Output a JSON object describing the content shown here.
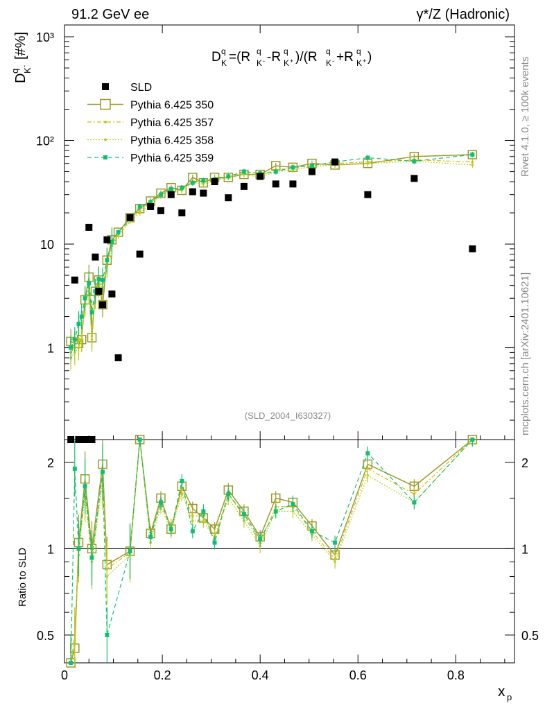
{
  "header": {
    "left": "91.2 GeV ee",
    "right": "γ*/Z (Hadronic)"
  },
  "side_labels": {
    "rivet": "Rivet 4.1.0, ≥ 100k events",
    "mcplots": "mcplots.cern.ch [arXiv:2401.10621]"
  },
  "watermark": "(SLD_2004_I630327)",
  "formula": "D_K^q=(R_K-^q-R_K+^q)/(R_K-^q+R_K+^q)",
  "colors": {
    "sld": "#000000",
    "p350": "#9a9a2a",
    "p357": "#d8b810",
    "p358": "#b8d020",
    "p359": "#10c070"
  },
  "chart_data": {
    "type": "scatter",
    "title": "D_K^q = (R_K-^q - R_K+^q)/(R_K-^q + R_K+^q)",
    "xlabel": "x_p",
    "ylabel_main": "D_K-^q [#%]",
    "ylabel_ratio": "Ratio to SLD",
    "xlim": [
      0,
      0.92
    ],
    "ylim_main": [
      0.13,
      1300
    ],
    "ylim_ratio": [
      0.4,
      2.4
    ],
    "x_ticks": [
      "0",
      "0.2",
      "0.4",
      "0.6",
      "0.8"
    ],
    "y_ticks_main": [
      "1",
      "10",
      "10²",
      "10³"
    ],
    "y_ticks_ratio": [
      "0.5",
      "1",
      "2"
    ],
    "legend": [
      "SLD",
      "Pythia 6.425 350",
      "Pythia 6.425 357",
      "Pythia 6.425 358",
      "Pythia 6.425 359"
    ],
    "x": [
      0.013,
      0.021,
      0.029,
      0.035,
      0.042,
      0.05,
      0.056,
      0.063,
      0.07,
      0.078,
      0.087,
      0.097,
      0.11,
      0.134,
      0.154,
      0.176,
      0.197,
      0.218,
      0.24,
      0.262,
      0.284,
      0.307,
      0.335,
      0.367,
      0.4,
      0.432,
      0.467,
      0.506,
      0.553,
      0.62,
      0.715,
      0.834
    ],
    "sld": [
      0.02,
      4.5,
      0.02,
      0.02,
      0.02,
      14.5,
      0.02,
      7.5,
      3.5,
      2.6,
      11,
      3.3,
      0.8,
      18,
      8,
      23,
      21,
      30,
      20,
      32,
      31,
      40,
      28,
      36,
      45,
      38,
      38,
      50,
      62,
      30,
      43,
      9
    ],
    "series": [
      {
        "name": "Pythia 6.425 350",
        "values": [
          1.15,
          1.1,
          1.1,
          1.2,
          2.9,
          4.8,
          1.25,
          3.5,
          4.5,
          2.6,
          7,
          11,
          13,
          18,
          22,
          26,
          31,
          35,
          33,
          44,
          39,
          44,
          44,
          47,
          47,
          57,
          55,
          60,
          58,
          60,
          70,
          73
        ]
      },
      {
        "name": "Pythia 6.425 357",
        "values": [
          0.9,
          1.0,
          1.2,
          1.3,
          2.7,
          3.8,
          1.3,
          3.2,
          4.2,
          3.8,
          6.5,
          10,
          12.5,
          17,
          21,
          25,
          30,
          33,
          34,
          40,
          40,
          42,
          45,
          48,
          46,
          52,
          54,
          58,
          60,
          62,
          65,
          62
        ]
      },
      {
        "name": "Pythia 6.425 358",
        "values": [
          0.8,
          0.9,
          1.0,
          1.2,
          2.6,
          3.5,
          1.2,
          3.1,
          4.0,
          3.6,
          6.2,
          9.6,
          12,
          16.5,
          20,
          24,
          29,
          32,
          33,
          39,
          38,
          41,
          44,
          47,
          44,
          50,
          52,
          56,
          58,
          60,
          63,
          58
        ]
      },
      {
        "name": "Pythia 6.425 359",
        "values": [
          1.0,
          1.2,
          1.7,
          2.0,
          3.0,
          4.2,
          2.2,
          3.5,
          4.6,
          4.5,
          7.0,
          10.5,
          13,
          17.5,
          23,
          25.5,
          30,
          34,
          35,
          39,
          41,
          42,
          45,
          50,
          48,
          50,
          55,
          57,
          62,
          68,
          63,
          73
        ]
      }
    ],
    "ratio_x": [
      0.013,
      0.021,
      0.029,
      0.042,
      0.056,
      0.078,
      0.087,
      0.134,
      0.154,
      0.176,
      0.197,
      0.218,
      0.24,
      0.262,
      0.284,
      0.307,
      0.335,
      0.367,
      0.4,
      0.432,
      0.467,
      0.506,
      0.553,
      0.62,
      0.715,
      0.834
    ],
    "ratio_series": [
      {
        "name": "Pythia 6.425 350",
        "values": [
          0.35,
          0.45,
          1.05,
          1.75,
          1.0,
          1.97,
          0.88,
          0.98,
          3.0,
          1.13,
          1.5,
          1.17,
          1.65,
          1.38,
          1.28,
          1.17,
          1.6,
          1.35,
          1.1,
          1.5,
          1.45,
          1.2,
          0.95,
          1.97,
          1.65,
          3.0
        ]
      },
      {
        "name": "Pythia 6.425 357",
        "values": [
          0.3,
          0.5,
          1.0,
          1.6,
          0.95,
          1.8,
          0.85,
          0.97,
          2.8,
          1.1,
          1.45,
          1.2,
          1.6,
          1.3,
          1.3,
          1.1,
          1.55,
          1.3,
          1.05,
          1.4,
          1.4,
          1.15,
          0.92,
          1.9,
          1.55,
          2.8
        ]
      },
      {
        "name": "Pythia 6.425 358",
        "values": [
          0.32,
          0.48,
          0.95,
          1.55,
          0.9,
          1.7,
          0.8,
          0.95,
          2.7,
          1.05,
          1.4,
          1.15,
          1.55,
          1.25,
          1.25,
          1.08,
          1.5,
          1.25,
          1.02,
          1.35,
          1.35,
          1.12,
          0.9,
          1.8,
          1.45,
          2.6
        ]
      },
      {
        "name": "Pythia 6.425 359",
        "values": [
          0.38,
          1.9,
          1.0,
          1.65,
          0.93,
          1.85,
          0.5,
          0.98,
          2.9,
          1.1,
          1.45,
          1.17,
          1.72,
          1.15,
          1.35,
          1.05,
          1.55,
          1.32,
          1.08,
          1.35,
          1.43,
          1.15,
          1.05,
          2.15,
          1.45,
          2.9
        ]
      }
    ]
  }
}
